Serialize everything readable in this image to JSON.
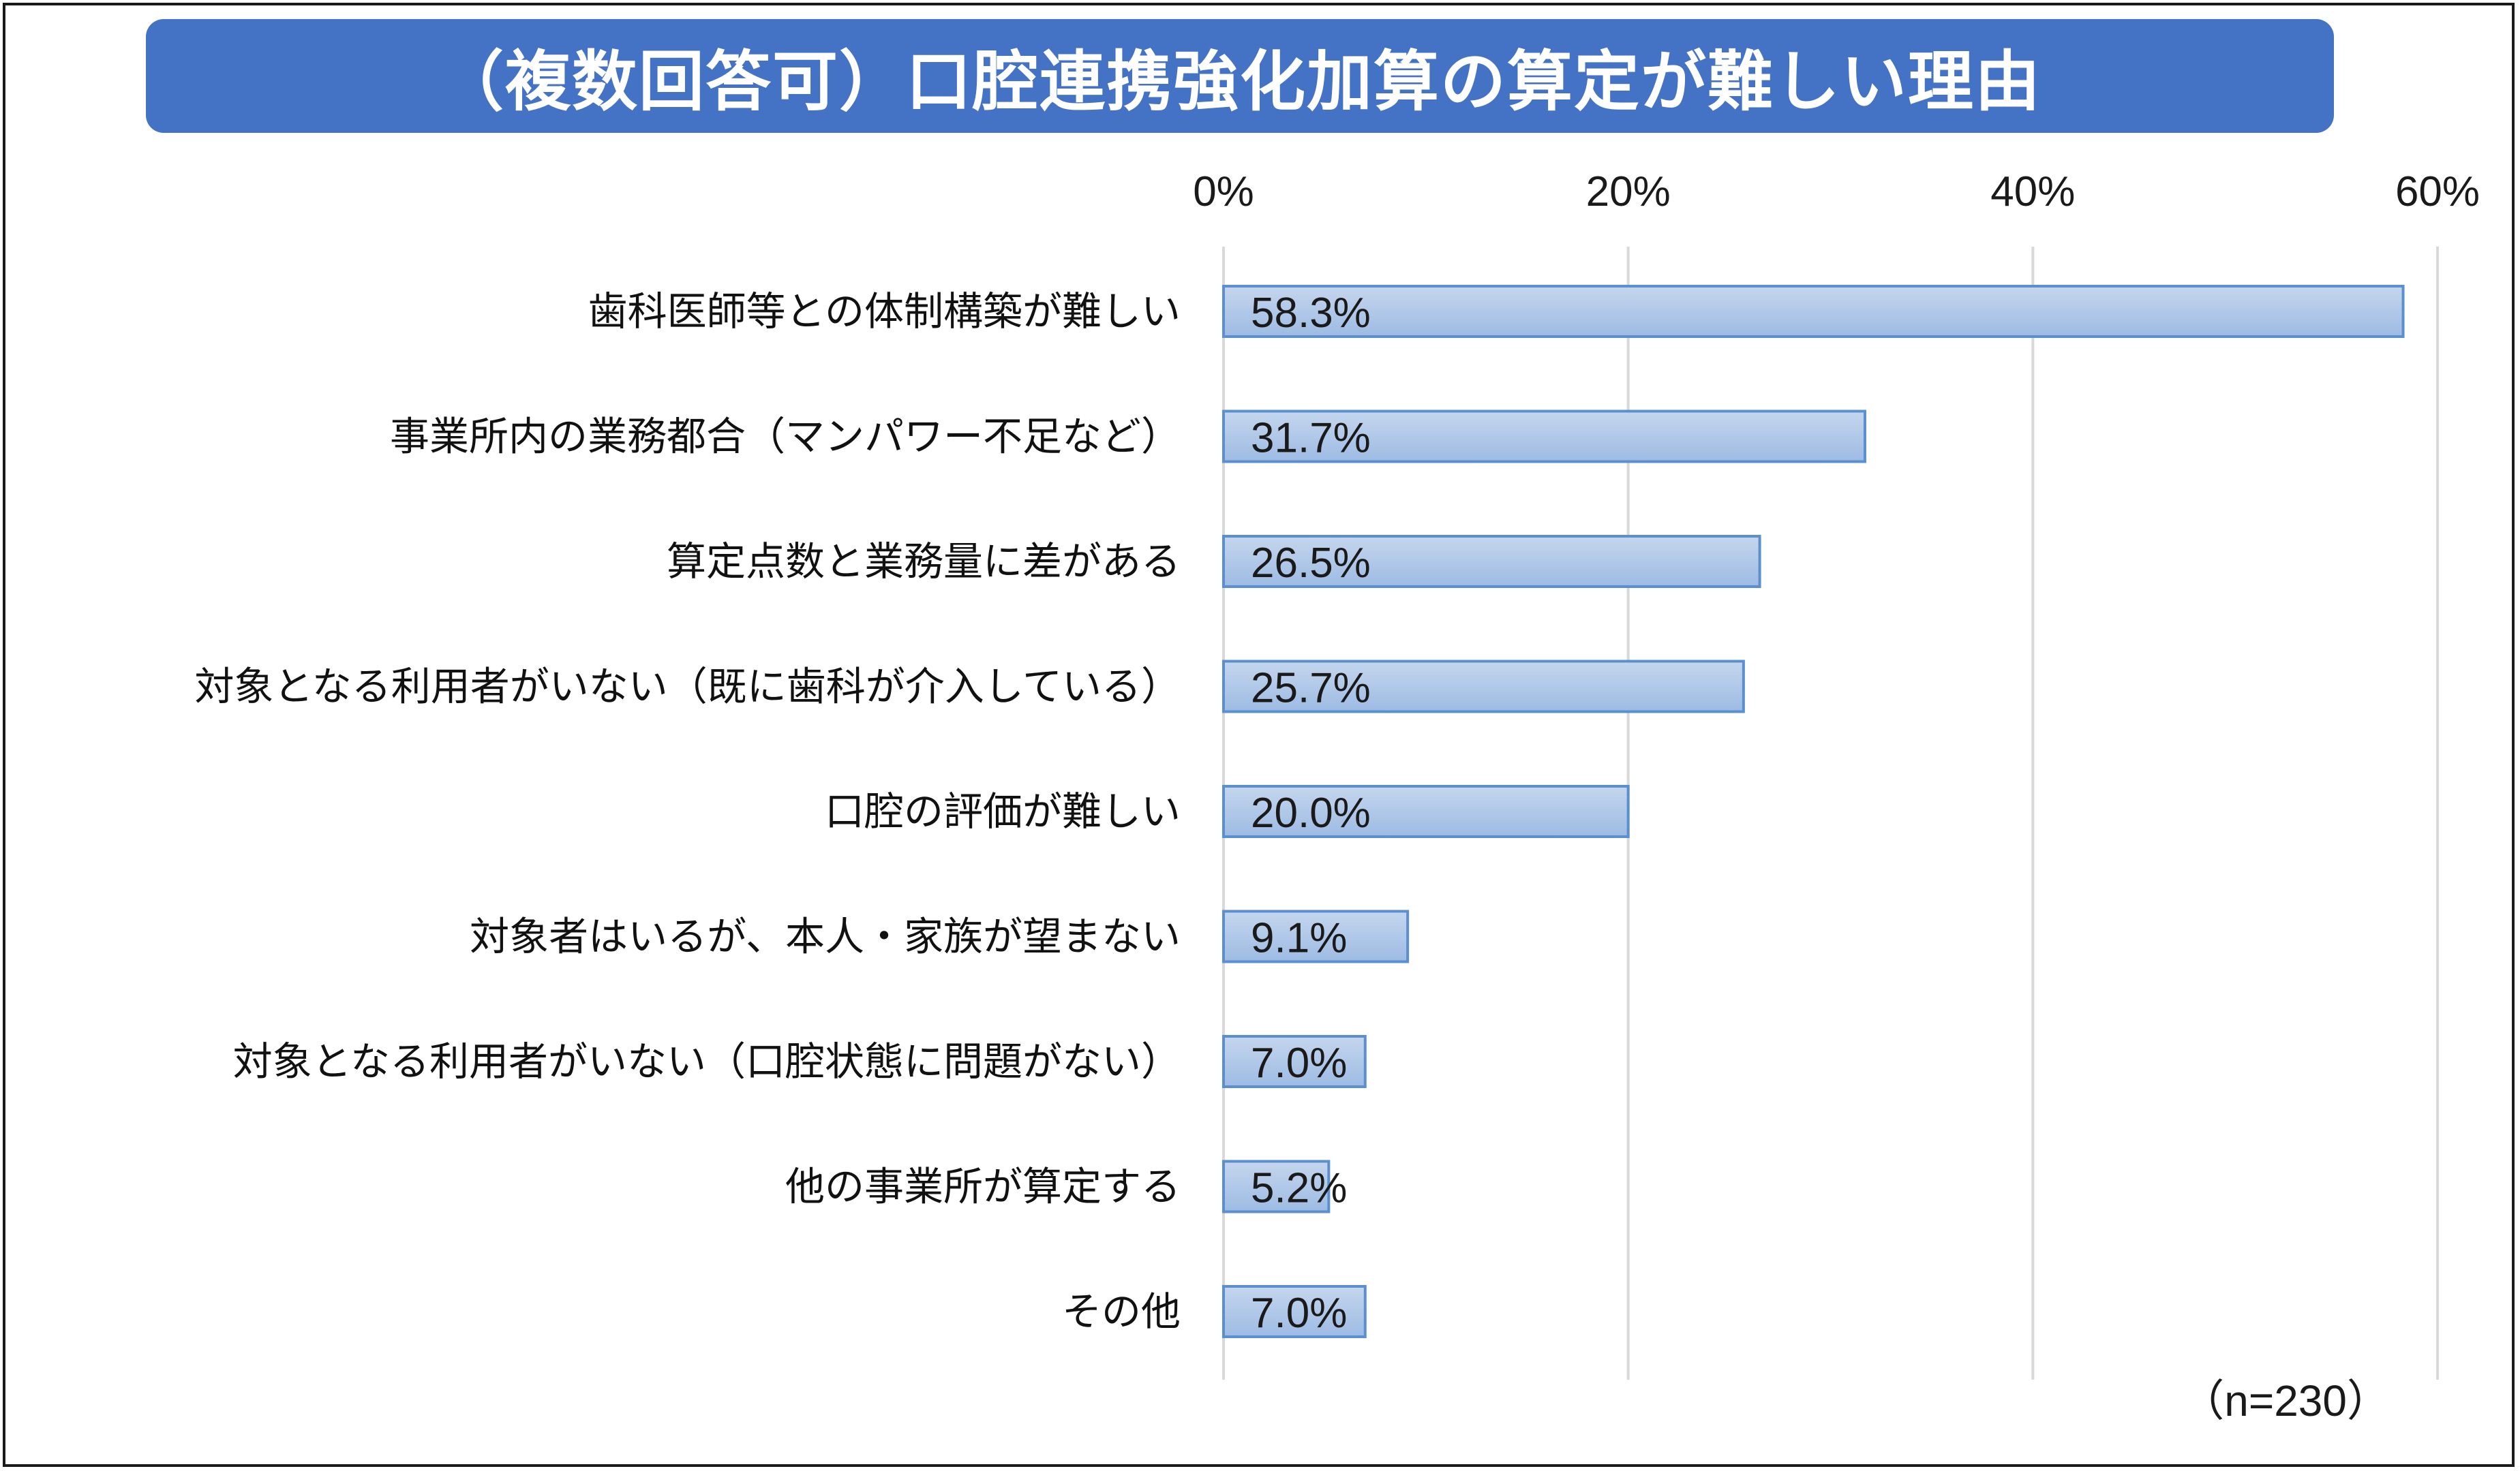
{
  "title": "（複数回答可）口腔連携強化加算の算定が難しい理由",
  "note": "（n=230）",
  "colors": {
    "banner": "#4472c4",
    "bar_fill_top": "#c5d6ee",
    "bar_fill_bottom": "#9dbbe3",
    "bar_stroke": "#5b8fd0",
    "grid": "#d9d9d9"
  },
  "chart_data": {
    "type": "bar",
    "orientation": "horizontal",
    "title": "（複数回答可）口腔連携強化加算の算定が難しい理由",
    "xlim": [
      0,
      60
    ],
    "xticks": [
      {
        "value": 0,
        "label": "0%"
      },
      {
        "value": 20,
        "label": "20%"
      },
      {
        "value": 40,
        "label": "40%"
      },
      {
        "value": 60,
        "label": "60%"
      }
    ],
    "grid": true,
    "categories": [
      "歯科医師等との体制構築が難しい",
      "事業所内の業務都合（マンパワー不足など）",
      "算定点数と業務量に差がある",
      "対象となる利用者がいない（既に歯科が介入している）",
      "口腔の評価が難しい",
      "対象者はいるが、本人・家族が望まない",
      "対象となる利用者がいない（口腔状態に問題がない）",
      "他の事業所が算定する",
      "その他"
    ],
    "values": [
      58.3,
      31.7,
      26.5,
      25.7,
      20.0,
      9.1,
      7.0,
      5.2,
      7.0
    ],
    "value_labels": [
      "58.3%",
      "31.7%",
      "26.5%",
      "25.7%",
      "20.0%",
      "9.1%",
      "7.0%",
      "5.2%",
      "7.0%"
    ]
  }
}
